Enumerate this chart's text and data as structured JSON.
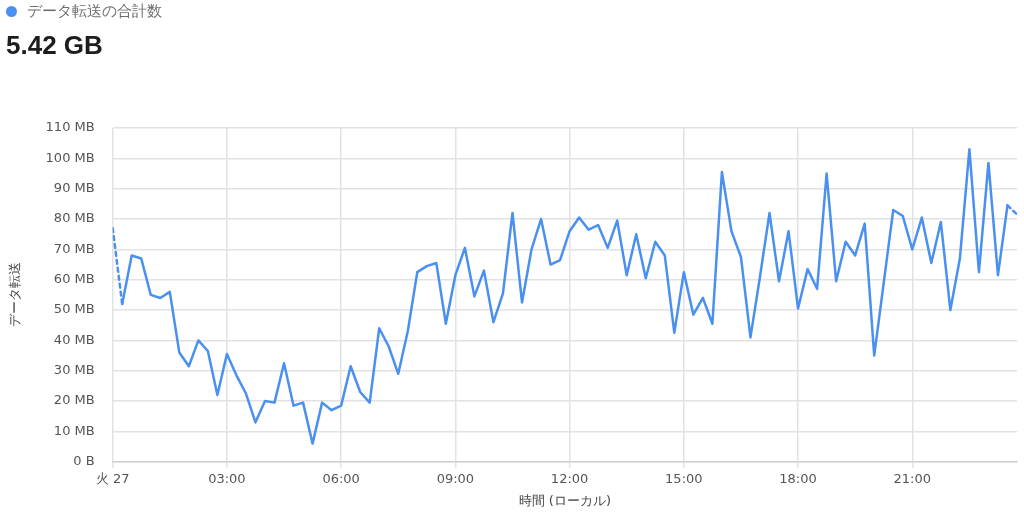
{
  "chart_data": {
    "type": "line",
    "subtitle": "5.42 GB",
    "xlabel": "時間 (ローカル)",
    "ylabel": "データ転送",
    "legend": "top left",
    "grid": true,
    "marker": "none",
    "xlim": [
      0,
      23.75
    ],
    "xticks": [
      {
        "value": 0,
        "label": "火 27"
      },
      {
        "value": 3,
        "label": "03:00"
      },
      {
        "value": 6,
        "label": "06:00"
      },
      {
        "value": 9,
        "label": "09:00"
      },
      {
        "value": 12,
        "label": "12:00"
      },
      {
        "value": 15,
        "label": "15:00"
      },
      {
        "value": 18,
        "label": "18:00"
      },
      {
        "value": 21,
        "label": "21:00"
      }
    ],
    "ylim": [
      0,
      110
    ],
    "yticks": [
      {
        "value": 0,
        "label": "0 B"
      },
      {
        "value": 10,
        "label": "10 MB"
      },
      {
        "value": 20,
        "label": "20 MB"
      },
      {
        "value": 30,
        "label": "30 MB"
      },
      {
        "value": 40,
        "label": "40 MB"
      },
      {
        "value": 50,
        "label": "50 MB"
      },
      {
        "value": 60,
        "label": "60 MB"
      },
      {
        "value": 70,
        "label": "70 MB"
      },
      {
        "value": 80,
        "label": "80 MB"
      },
      {
        "value": 90,
        "label": "90 MB"
      },
      {
        "value": 100,
        "label": "100 MB"
      },
      {
        "value": 110,
        "label": "110 MB"
      }
    ],
    "series": [
      {
        "name": "データ転送の合計数",
        "color": "#4a90f0",
        "line_style": "solid",
        "x": [
          0.25,
          0.5,
          0.75,
          1,
          1.25,
          1.5,
          1.75,
          2,
          2.25,
          2.5,
          2.75,
          3,
          3.25,
          3.5,
          3.75,
          4,
          4.25,
          4.5,
          4.75,
          5,
          5.25,
          5.5,
          5.75,
          6,
          6.25,
          6.5,
          6.75,
          7,
          7.25,
          7.5,
          7.75,
          8,
          8.25,
          8.5,
          8.75,
          9,
          9.25,
          9.5,
          9.75,
          10,
          10.25,
          10.5,
          10.75,
          11,
          11.25,
          11.5,
          11.75,
          12,
          12.25,
          12.5,
          12.75,
          13,
          13.25,
          13.5,
          13.75,
          14,
          14.25,
          14.5,
          14.75,
          15,
          15.25,
          15.5,
          15.75,
          16,
          16.25,
          16.5,
          16.75,
          17,
          17.25,
          17.5,
          17.75,
          18,
          18.25,
          18.5,
          18.75,
          19,
          19.25,
          19.5,
          19.75,
          20,
          20.25,
          20.5,
          20.75,
          21,
          21.25,
          21.5,
          21.75,
          22,
          22.25,
          22.5,
          22.75,
          23,
          23.25,
          23.5
        ],
        "values": [
          52,
          68,
          67,
          55,
          54,
          56,
          36,
          31.5,
          40,
          36.5,
          22,
          35.5,
          28.5,
          22.5,
          13,
          20,
          19.5,
          32.5,
          18.5,
          19.5,
          6,
          19.5,
          17,
          18.5,
          31.5,
          23,
          19.5,
          44,
          38,
          29,
          43,
          62.5,
          64.5,
          65.5,
          45.5,
          61.5,
          70.5,
          54.5,
          63,
          46,
          55.5,
          82,
          52.5,
          70,
          80,
          65,
          66.5,
          76,
          80.5,
          76.5,
          78,
          70.5,
          79.5,
          61.5,
          75,
          60.5,
          72.5,
          68,
          42.5,
          62.5,
          48.5,
          54,
          45.5,
          95.5,
          76,
          67.5,
          41,
          61,
          82,
          59.5,
          76,
          50.5,
          63.5,
          57,
          95,
          59.5,
          72.5,
          68,
          78.5,
          35,
          59,
          83,
          81,
          70,
          80.5,
          65.5,
          79,
          50,
          67,
          103,
          62.5,
          98.5,
          61.5,
          84.5
        ]
      },
      {
        "color": "#4a90f0",
        "line_style": "dashed",
        "x": [
          0,
          0.25
        ],
        "values": [
          77,
          52
        ]
      },
      {
        "color": "#4a90f0",
        "line_style": "dashed",
        "x": [
          23.5,
          23.75
        ],
        "values": [
          84.5,
          81.5
        ]
      }
    ]
  }
}
